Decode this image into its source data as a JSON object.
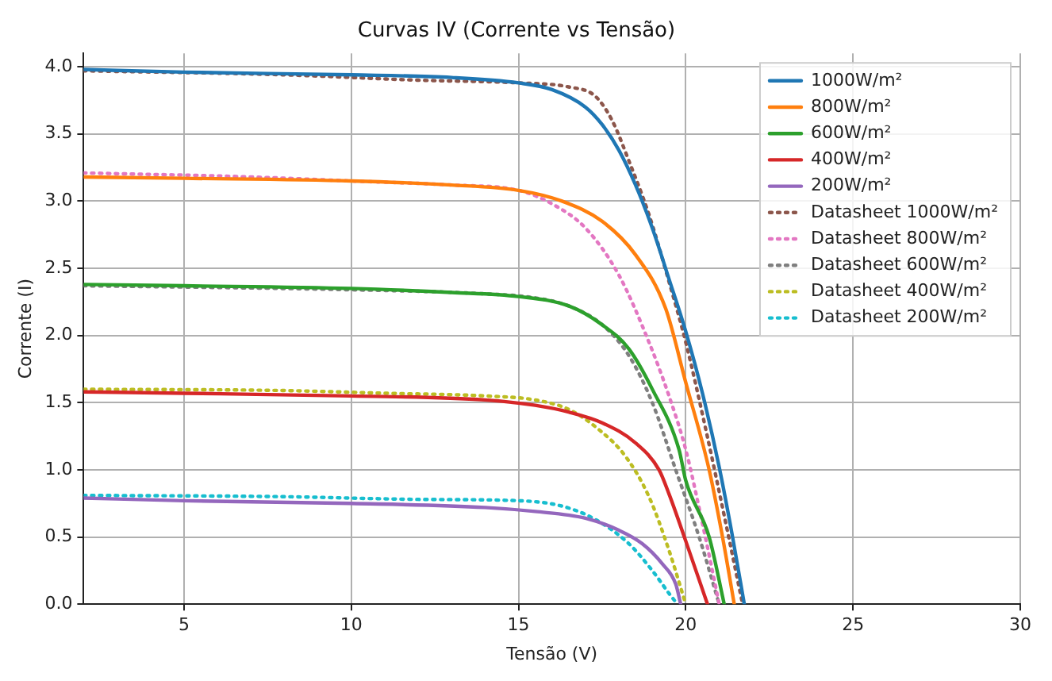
{
  "chart_data": {
    "type": "line",
    "title": "Curvas IV (Corrente vs Tensão)",
    "xlabel": "Tensão (V)",
    "ylabel": "Corrente (I)",
    "xlim": [
      2,
      30
    ],
    "xticks": [
      5,
      10,
      15,
      20,
      25,
      30
    ],
    "ylim": [
      0,
      4.1
    ],
    "yticks": [
      {
        "value": 0,
        "label": "0.0"
      },
      0.5,
      {
        "value": 1,
        "label": "1.0"
      },
      1.5,
      {
        "value": 2,
        "label": "2.0"
      },
      2.5,
      {
        "value": 3,
        "label": "3.0"
      },
      3.5,
      {
        "value": 4,
        "label": "4.0"
      }
    ],
    "grid": true,
    "legend": "top right",
    "marker": "none",
    "series": [
      {
        "name": "1000W/m²",
        "color": "#1f77b4",
        "line_style": "solid",
        "x": [
          2,
          5,
          10,
          13,
          15,
          16,
          17,
          17.5,
          18,
          18.5,
          19,
          19.5,
          20,
          20.5,
          21,
          21.4,
          21.75
        ],
        "values": [
          3.98,
          3.96,
          3.94,
          3.92,
          3.88,
          3.83,
          3.7,
          3.57,
          3.38,
          3.12,
          2.8,
          2.42,
          2.03,
          1.57,
          1.02,
          0.5,
          0
        ]
      },
      {
        "name": "800W/m²",
        "color": "#ff7f0e",
        "line_style": "solid",
        "x": [
          2,
          5,
          10,
          13,
          15,
          16.3,
          17.5,
          18.5,
          19.4,
          20,
          20.7,
          21.1,
          21.45
        ],
        "values": [
          3.18,
          3.17,
          3.15,
          3.12,
          3.08,
          3,
          2.85,
          2.6,
          2.2,
          1.65,
          1,
          0.5,
          0
        ]
      },
      {
        "name": "600W/m²",
        "color": "#2ca02c",
        "line_style": "solid",
        "x": [
          2,
          5,
          10,
          13,
          15,
          16.5,
          17.5,
          18.3,
          19,
          19.8,
          20,
          20.7,
          21.15
        ],
        "values": [
          2.38,
          2.37,
          2.35,
          2.32,
          2.29,
          2.22,
          2.08,
          1.9,
          1.6,
          1.15,
          0.92,
          0.5,
          0
        ]
      },
      {
        "name": "400W/m²",
        "color": "#d62728",
        "line_style": "solid",
        "x": [
          2,
          5,
          10,
          14,
          15.5,
          16.5,
          17.5,
          18.5,
          19.2,
          19.5,
          20,
          20.65
        ],
        "values": [
          1.58,
          1.57,
          1.55,
          1.52,
          1.48,
          1.43,
          1.35,
          1.2,
          1,
          0.82,
          0.47,
          0
        ]
      },
      {
        "name": "200W/m²",
        "color": "#9467bd",
        "line_style": "solid",
        "x": [
          2,
          5,
          10,
          14,
          15.5,
          17,
          18,
          18.7,
          19.3,
          19.7,
          19.85
        ],
        "values": [
          0.79,
          0.77,
          0.75,
          0.72,
          0.69,
          0.64,
          0.55,
          0.45,
          0.3,
          0.15,
          0
        ]
      },
      {
        "name": "Datasheet 1000W/m²",
        "color": "#8c564b",
        "line_style": "dotted",
        "x": [
          2,
          8,
          12,
          15,
          16.5,
          17.3,
          17.8,
          18.3,
          18.9,
          19.5,
          20,
          20.6,
          21.2,
          21.7
        ],
        "values": [
          3.97,
          3.94,
          3.9,
          3.88,
          3.85,
          3.78,
          3.6,
          3.3,
          2.9,
          2.4,
          1.95,
          1.3,
          0.6,
          0
        ]
      },
      {
        "name": "Datasheet 800W/m²",
        "color": "#e377c2",
        "line_style": "dotted",
        "x": [
          2,
          7,
          10,
          13,
          15,
          16,
          17,
          18,
          18.9,
          19.5,
          20,
          20.5,
          21
        ],
        "values": [
          3.21,
          3.18,
          3.15,
          3.12,
          3.08,
          2.98,
          2.8,
          2.45,
          1.95,
          1.55,
          1.15,
          0.6,
          0
        ]
      },
      {
        "name": "Datasheet 600W/m²",
        "color": "#7f7f7f",
        "line_style": "dotted",
        "x": [
          2,
          10,
          14,
          15.5,
          16.5,
          17.5,
          18.3,
          19,
          19.7,
          20.4,
          21
        ],
        "values": [
          2.37,
          2.34,
          2.31,
          2.28,
          2.22,
          2.08,
          1.85,
          1.5,
          1,
          0.5,
          0
        ]
      },
      {
        "name": "Datasheet 400W/m²",
        "color": "#bcbd22",
        "line_style": "dotted",
        "x": [
          2,
          8,
          11,
          14,
          15.5,
          16.5,
          17.4,
          18.2,
          18.9,
          19.5,
          20
        ],
        "values": [
          1.6,
          1.59,
          1.57,
          1.55,
          1.52,
          1.45,
          1.3,
          1.1,
          0.8,
          0.4,
          0
        ]
      },
      {
        "name": "Datasheet 200W/m²",
        "color": "#17becf",
        "line_style": "dotted",
        "x": [
          2,
          8,
          12,
          15,
          16.3,
          17.3,
          18.3,
          19,
          19.5,
          19.75
        ],
        "values": [
          0.81,
          0.8,
          0.78,
          0.77,
          0.73,
          0.63,
          0.45,
          0.25,
          0.08,
          0
        ]
      }
    ]
  }
}
